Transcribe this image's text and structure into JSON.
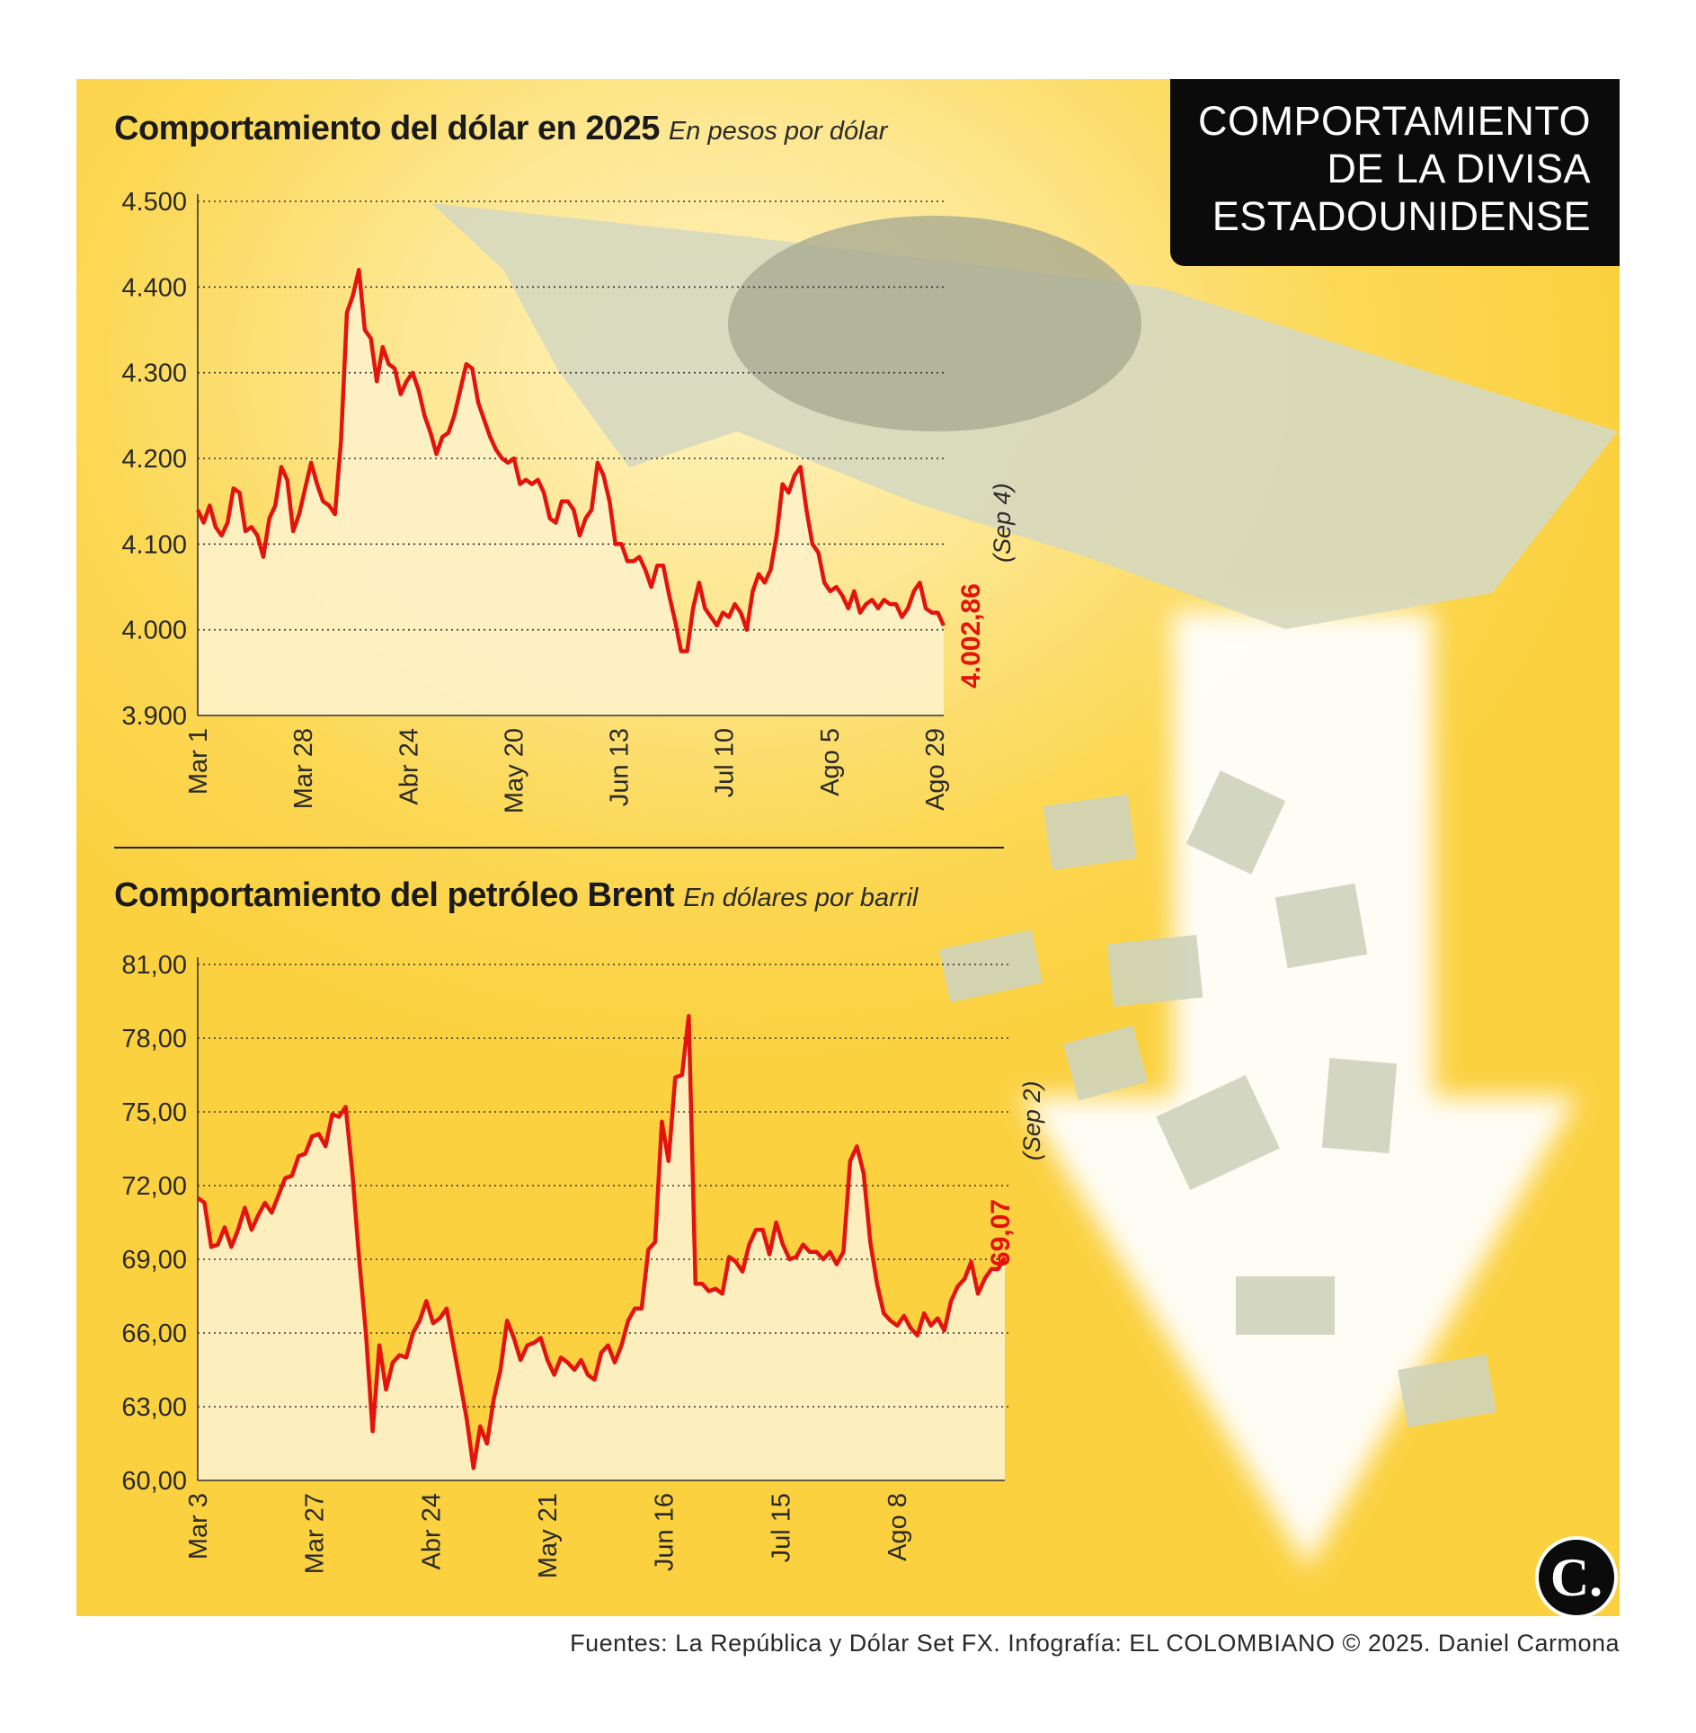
{
  "badge": {
    "lines": [
      "COMPORTAMIENTO",
      "DE LA DIVISA",
      "ESTADOUNIDENSE"
    ]
  },
  "source": "Fuentes: La República y Dólar Set FX. Infografía: EL COLOMBIANO © 2025. Daniel Carmona",
  "logo": "C.",
  "colors": {
    "background": "#fcd855",
    "line": "#e3130d",
    "area": "#fdf1c8",
    "badge": "#0b0b0b"
  },
  "chart_data": [
    {
      "type": "line",
      "title": "Comportamiento del dólar en 2025",
      "subtitle": "En pesos por dólar",
      "ylim": [
        3900,
        4500
      ],
      "yticks": [
        "3.900",
        "4.000",
        "4.100",
        "4.200",
        "4.300",
        "4.400",
        "4.500"
      ],
      "xticks": [
        "Mar 1",
        "Mar 28",
        "Abr 24",
        "May 20",
        "Jun 13",
        "Jul 10",
        "Ago 5",
        "Ago 29"
      ],
      "grid": "horizontal dotted",
      "last_value": "4.002,86",
      "last_date": "(Sep 4)",
      "series": [
        {
          "values": [
            4140,
            4125,
            4145,
            4120,
            4110,
            4125,
            4165,
            4160,
            4115,
            4120,
            4110,
            4085,
            4130,
            4145,
            4190,
            4175,
            4115,
            4135,
            4165,
            4195,
            4170,
            4150,
            4145,
            4135,
            4220,
            4370,
            4390,
            4420,
            4350,
            4340,
            4290,
            4330,
            4310,
            4305,
            4275,
            4290,
            4300,
            4280,
            4250,
            4230,
            4205,
            4225,
            4230,
            4250,
            4280,
            4310,
            4305,
            4265,
            4245,
            4225,
            4210,
            4200,
            4195,
            4200,
            4170,
            4175,
            4170,
            4175,
            4160,
            4130,
            4125,
            4150,
            4150,
            4140,
            4110,
            4130,
            4140,
            4195,
            4180,
            4150,
            4100,
            4100,
            4080,
            4080,
            4085,
            4070,
            4050,
            4075,
            4075,
            4040,
            4010,
            3975,
            3975,
            4025,
            4055,
            4025,
            4015,
            4005,
            4020,
            4015,
            4030,
            4020,
            4000,
            4045,
            4065,
            4055,
            4070,
            4110,
            4170,
            4160,
            4180,
            4190,
            4140,
            4100,
            4090,
            4055,
            4045,
            4050,
            4040,
            4025,
            4045,
            4020,
            4030,
            4035,
            4025,
            4035,
            4030,
            4030,
            4015,
            4025,
            4045,
            4055,
            4025,
            4020,
            4020,
            4005
          ]
        }
      ]
    },
    {
      "type": "line",
      "title": "Comportamiento del petróleo Brent",
      "subtitle": "En dólares por barril",
      "ylim": [
        60,
        81
      ],
      "yticks": [
        "60,00",
        "63,00",
        "66,00",
        "69,00",
        "72,00",
        "75,00",
        "78,00",
        "81,00"
      ],
      "xticks": [
        "Mar 3",
        "Mar 27",
        "Abr 24",
        "May 21",
        "Jun 16",
        "Jul 15",
        "Ago 8"
      ],
      "grid": "horizontal dotted",
      "last_value": "69,07",
      "last_date": "(Sep 2)",
      "series": [
        {
          "values": [
            71.5,
            71.3,
            69.5,
            69.6,
            70.3,
            69.5,
            70.2,
            71.1,
            70.2,
            70.8,
            71.3,
            70.9,
            71.6,
            72.3,
            72.4,
            73.2,
            73.3,
            74.0,
            74.1,
            73.6,
            74.9,
            74.8,
            75.2,
            72.5,
            69.0,
            66.0,
            62.0,
            65.5,
            63.7,
            64.8,
            65.1,
            65.0,
            66.0,
            66.5,
            67.3,
            66.4,
            66.6,
            67.0,
            65.5,
            64.0,
            62.5,
            60.5,
            62.2,
            61.5,
            63.3,
            64.5,
            66.5,
            65.8,
            64.9,
            65.5,
            65.6,
            65.8,
            64.9,
            64.3,
            65.0,
            64.8,
            64.5,
            64.9,
            64.3,
            64.1,
            65.2,
            65.5,
            64.8,
            65.5,
            66.5,
            67.0,
            67.0,
            69.4,
            69.7,
            74.6,
            73.0,
            76.4,
            76.5,
            78.9,
            68.0,
            68.0,
            67.7,
            67.8,
            67.6,
            69.1,
            68.9,
            68.5,
            69.6,
            70.2,
            70.2,
            69.2,
            70.5,
            69.6,
            69.0,
            69.1,
            69.6,
            69.3,
            69.3,
            69.0,
            69.3,
            68.8,
            69.3,
            73.0,
            73.6,
            72.5,
            69.7,
            68.0,
            66.8,
            66.5,
            66.3,
            66.7,
            66.2,
            65.9,
            66.8,
            66.3,
            66.6,
            66.1,
            67.3,
            67.9,
            68.2,
            68.9,
            67.6,
            68.2,
            68.6,
            68.6,
            69.07
          ]
        }
      ]
    }
  ]
}
